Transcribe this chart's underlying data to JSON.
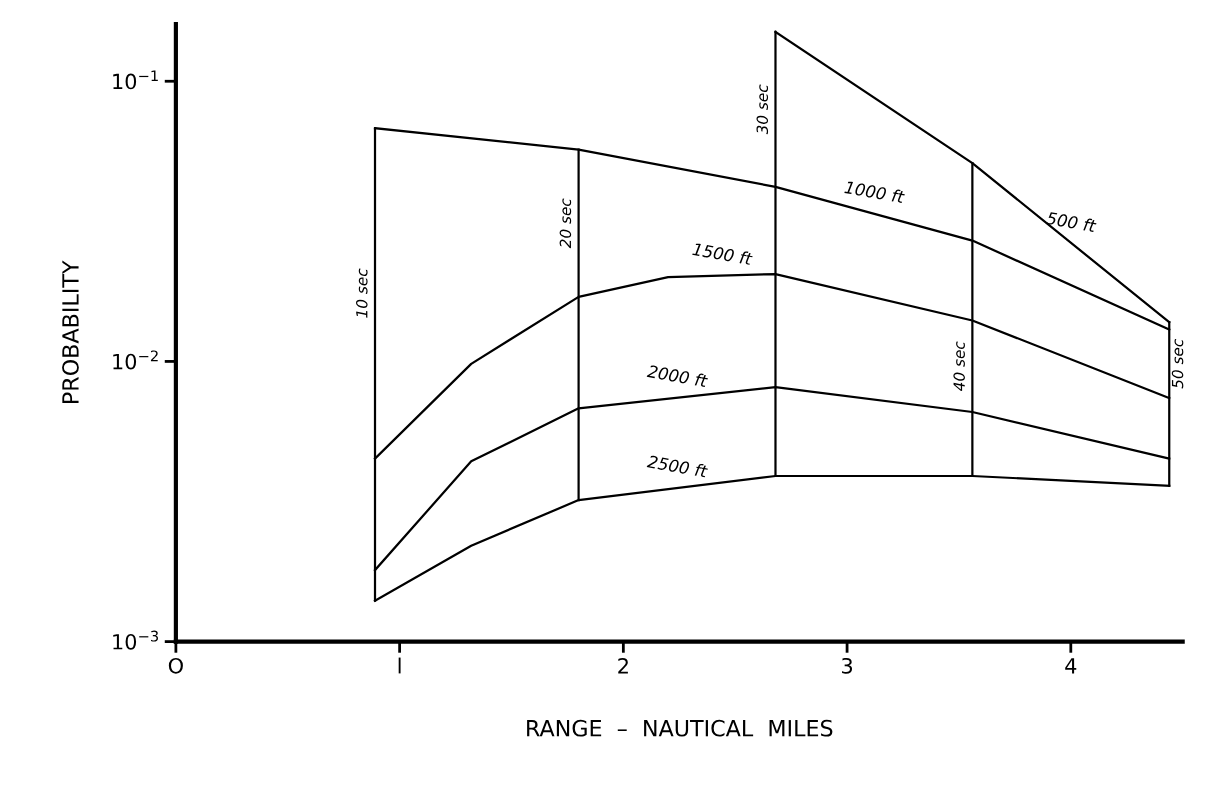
{
  "chart_data": {
    "type": "line",
    "xlabel": "RANGE  –  NAUTICAL  MILES",
    "ylabel": "PROBABILITY",
    "log": "y",
    "xlim": [
      0,
      4.5
    ],
    "ylim": [
      0.001,
      0.16
    ],
    "xticks": [
      {
        "value": 0,
        "label": "O"
      },
      {
        "value": 1,
        "label": "l"
      },
      2,
      3,
      4
    ],
    "yticks": [
      {
        "value": 0.1,
        "label": "10$^{−1}$"
      },
      {
        "value": 0.01,
        "label": "10$^{−2}$"
      },
      {
        "value": 0.001,
        "label": "10$^{−3}$"
      }
    ],
    "grid": false,
    "legend": false,
    "marker": "none",
    "line_style": "solid",
    "series": [
      {
        "name": "500 ft",
        "color": "#000000",
        "x": [
          2.68,
          3.56,
          4.44
        ],
        "values": [
          0.15,
          0.051,
          0.0138
        ]
      },
      {
        "name": "1000 ft",
        "color": "#000000",
        "x": [
          0.89,
          1.8,
          2.68,
          3.56,
          4.44
        ],
        "values": [
          0.068,
          0.057,
          0.042,
          0.027,
          0.013
        ]
      },
      {
        "name": "1500 ft",
        "color": "#000000",
        "x": [
          0.89,
          1.32,
          1.8,
          2.2,
          2.68,
          3.56,
          4.44
        ],
        "values": [
          0.0045,
          0.0098,
          0.017,
          0.02,
          0.0205,
          0.014,
          0.0074
        ]
      },
      {
        "name": "2000 ft",
        "color": "#000000",
        "x": [
          0.89,
          1.32,
          1.8,
          2.68,
          3.56,
          4.44
        ],
        "values": [
          0.0018,
          0.0044,
          0.0068,
          0.0081,
          0.0066,
          0.0045
        ]
      },
      {
        "name": "2500 ft",
        "color": "#000000",
        "x": [
          0.89,
          1.32,
          1.8,
          2.68,
          3.56,
          4.44
        ],
        "values": [
          0.0014,
          0.0022,
          0.0032,
          0.0039,
          0.0039,
          0.0036
        ]
      },
      {
        "name": "10 sec",
        "color": "#000000",
        "x": [
          0.89,
          0.89
        ],
        "values": [
          0.0014,
          0.068
        ]
      },
      {
        "name": "20 sec",
        "color": "#000000",
        "x": [
          1.8,
          1.8
        ],
        "values": [
          0.0032,
          0.057
        ]
      },
      {
        "name": "30 sec",
        "color": "#000000",
        "x": [
          2.68,
          2.68
        ],
        "values": [
          0.0039,
          0.15
        ]
      },
      {
        "name": "40 sec",
        "color": "#000000",
        "x": [
          3.56,
          3.56
        ],
        "values": [
          0.0039,
          0.051
        ]
      },
      {
        "name": "50 sec",
        "color": "#000000",
        "x": [
          4.44,
          4.44
        ],
        "values": [
          0.0036,
          0.0138
        ]
      }
    ]
  }
}
